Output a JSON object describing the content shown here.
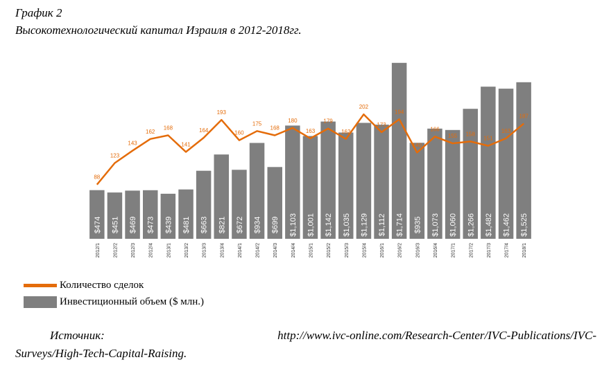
{
  "figure": {
    "label": "График 2",
    "title": "Высокотехнологический капитал Израиля в 2012-2018гг."
  },
  "source": {
    "label": "Источник:",
    "url_part1": "http://www.ivc-online.com/Research-Center/IVC-Publications/IVC-",
    "url_part2": "Surveys/High-Tech-Capital-Raising."
  },
  "chart_data": {
    "type": "bar",
    "title": "",
    "categories": [
      "2012/1",
      "2012/2",
      "2012/3",
      "2012/4",
      "2013/1",
      "2013/2",
      "2013/3",
      "2013/4",
      "2014/1",
      "2014/2",
      "2014/3",
      "2014/4",
      "2015/1",
      "2015/2",
      "2015/3",
      "2015/4",
      "2016/1",
      "2016/2",
      "2016/3",
      "2016/4",
      "2017/1",
      "2017/2",
      "2017/3",
      "2017/4",
      "2018/1"
    ],
    "series": [
      {
        "name": "Инвестиционный объем ($ млн.)",
        "type": "bar",
        "color": "#7f7f7f",
        "values": [
          474,
          451,
          469,
          473,
          439,
          481,
          663,
          821,
          672,
          934,
          699,
          1103,
          1001,
          1142,
          1035,
          1129,
          1112,
          1714,
          935,
          1073,
          1060,
          1266,
          1482,
          1462,
          1525
        ],
        "value_labels": [
          "$474",
          "$451",
          "$469",
          "$473",
          "$439",
          "$481",
          "$663",
          "$821",
          "$672",
          "$934",
          "$699",
          "$1,103",
          "$1,001",
          "$1,142",
          "$1,035",
          "$1,129",
          "$1,112",
          "$1,714",
          "$935",
          "$1,073",
          "$1,060",
          "$1,266",
          "$1,482",
          "$1,462",
          "$1,525"
        ]
      },
      {
        "name": "Количество сделок",
        "type": "line",
        "color": "#e46c0a",
        "values": [
          88,
          123,
          143,
          162,
          168,
          141,
          164,
          193,
          160,
          175,
          168,
          180,
          163,
          179,
          162,
          202,
          173,
          194,
          140,
          166,
          155,
          158,
          151,
          163,
          187
        ]
      }
    ],
    "ylim_bars": [
      0,
      1800
    ],
    "ylim_line": [
      0,
      300
    ],
    "grid": false,
    "legend_position": "bottom-left"
  }
}
